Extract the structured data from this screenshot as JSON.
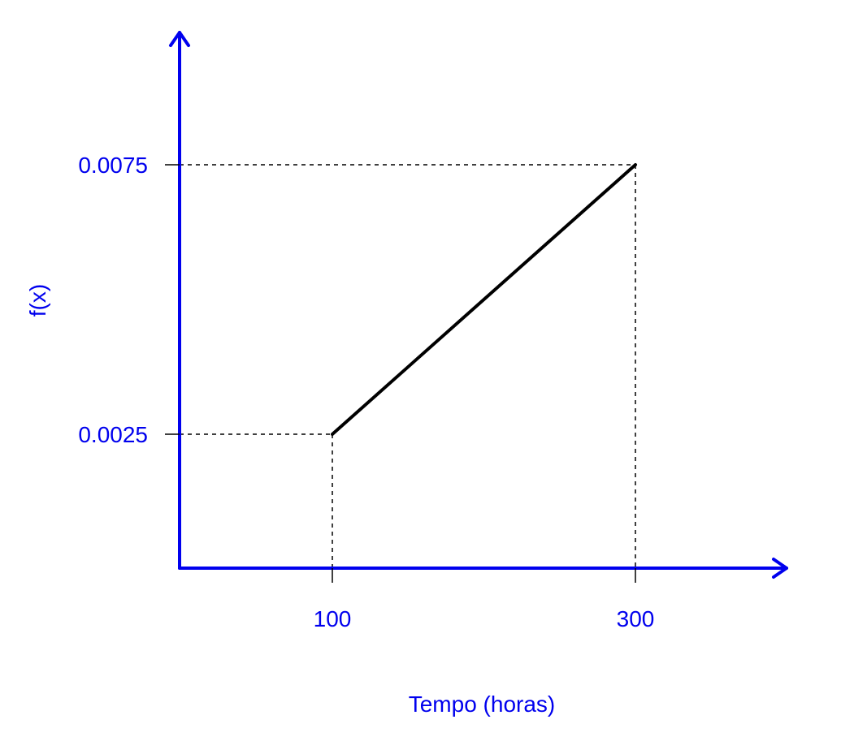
{
  "chart_data": {
    "type": "line",
    "title": "",
    "xlabel": "Tempo (horas)",
    "ylabel": "f(x)",
    "xlim": [
      50,
      400
    ],
    "ylim": [
      0.0,
      0.009
    ],
    "x_ticks": [
      {
        "value": 100,
        "label": "100"
      },
      {
        "value": 300,
        "label": "300"
      }
    ],
    "y_ticks": [
      {
        "value": 0.0025,
        "label": "0.0025"
      },
      {
        "value": 0.0075,
        "label": "0.0075"
      }
    ],
    "series": [
      {
        "points": [
          {
            "x": 100,
            "y": 0.0025
          },
          {
            "x": 300,
            "y": 0.0075
          }
        ],
        "color": "#000000"
      }
    ],
    "reference_lines": "dashed",
    "grid": false,
    "axis_color": "#0000ee",
    "text_color": "#0000ee"
  }
}
